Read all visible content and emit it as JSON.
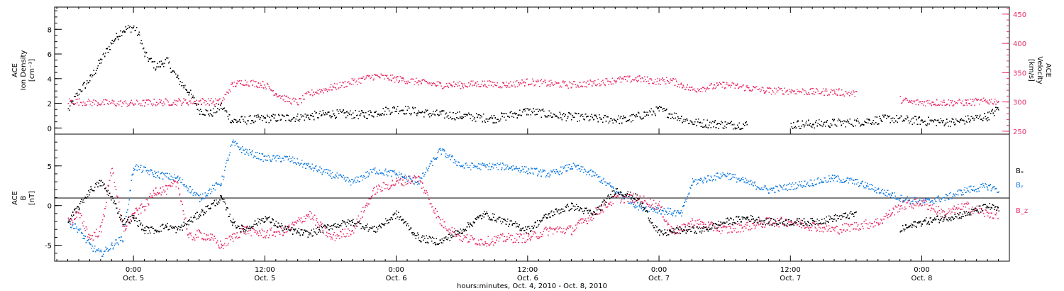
{
  "colors": {
    "density": "#000000",
    "velocity": "#e8336b",
    "bx": "#000000",
    "by": "#1a7fe0",
    "bz": "#e8336b"
  },
  "chart_data": [
    {
      "type": "scatter",
      "panel": "top",
      "ylabel": [
        "ACE",
        "Ion Density",
        "[cm⁻³]"
      ],
      "ylabel_right": [
        "ACE",
        "Velocity",
        "[km/s]"
      ],
      "ylim": [
        -0.5,
        9.8
      ],
      "ylim_right": [
        245,
        462
      ],
      "yticks": [
        "0",
        "2",
        "4",
        "6",
        "8"
      ],
      "yticks_right": [
        "250",
        "300",
        "350",
        "400",
        "450"
      ],
      "series": [
        {
          "name": "Ion Density",
          "axis": "left",
          "color": "#000000",
          "points": [
            [
              -6,
              1.5
            ],
            [
              -5,
              3
            ],
            [
              -4,
              4
            ],
            [
              -3,
              5.5
            ],
            [
              -2,
              7
            ],
            [
              -1,
              8
            ],
            [
              0,
              8.2
            ],
            [
              0.5,
              7.5
            ],
            [
              1,
              6
            ],
            [
              2,
              5
            ],
            [
              3,
              5.5
            ],
            [
              4,
              4
            ],
            [
              5,
              3
            ],
            [
              6,
              1.5
            ],
            [
              7,
              1.2
            ],
            [
              8,
              1.8
            ],
            [
              9,
              0.6
            ],
            [
              12,
              0.8
            ],
            [
              15,
              0.9
            ],
            [
              18,
              1.2
            ],
            [
              21,
              1.1
            ],
            [
              24,
              1.6
            ],
            [
              27,
              1.2
            ],
            [
              30,
              1.0
            ],
            [
              33,
              0.8
            ],
            [
              36,
              1.4
            ],
            [
              39,
              1.0
            ],
            [
              42,
              0.8
            ],
            [
              45,
              0.7
            ],
            [
              48,
              1.5
            ],
            [
              51,
              0.5
            ],
            [
              54,
              0.3
            ],
            [
              56,
              0.3
            ],
            [
              60,
              0.3
            ],
            [
              63,
              0.4
            ],
            [
              66,
              0.5
            ],
            [
              69,
              0.8
            ],
            [
              72,
              0.6
            ],
            [
              75,
              0.5
            ],
            [
              76,
              0.7
            ],
            [
              78,
              1.0
            ],
            [
              79,
              1.6
            ]
          ]
        },
        {
          "name": "Velocity",
          "axis": "right",
          "color": "#e8336b",
          "points": [
            [
              -6,
              302
            ],
            [
              -4,
              300
            ],
            [
              -2,
              299
            ],
            [
              0,
              298
            ],
            [
              2,
              300
            ],
            [
              4,
              301
            ],
            [
              6,
              302
            ],
            [
              8,
              301
            ],
            [
              9,
              330
            ],
            [
              10,
              335
            ],
            [
              12,
              330
            ],
            [
              13,
              315
            ],
            [
              14,
              305
            ],
            [
              15,
              300
            ],
            [
              16,
              315
            ],
            [
              18,
              325
            ],
            [
              20,
              335
            ],
            [
              22,
              345
            ],
            [
              24,
              340
            ],
            [
              26,
              335
            ],
            [
              28,
              330
            ],
            [
              30,
              330
            ],
            [
              32,
              332
            ],
            [
              34,
              330
            ],
            [
              36,
              335
            ],
            [
              38,
              332
            ],
            [
              40,
              330
            ],
            [
              42,
              333
            ],
            [
              44,
              338
            ],
            [
              46,
              340
            ],
            [
              48,
              336
            ],
            [
              49,
              338
            ],
            [
              50,
              330
            ],
            [
              51,
              322
            ],
            [
              54,
              330
            ],
            [
              56,
              325
            ],
            [
              58,
              320
            ],
            [
              60,
              320
            ],
            [
              62,
              318
            ],
            [
              64,
              318
            ],
            [
              66,
              315
            ],
            [
              70,
              305
            ],
            [
              71,
              300
            ],
            [
              73,
              300
            ],
            [
              74,
              300
            ],
            [
              76,
              300
            ],
            [
              78,
              302
            ],
            [
              79,
              303
            ]
          ]
        }
      ]
    },
    {
      "type": "scatter",
      "panel": "bottom",
      "ylabel": [
        "ACE",
        "B",
        "[nT]"
      ],
      "ylim": [
        -7,
        9
      ],
      "yticks": [
        "-5",
        "0",
        "5"
      ],
      "legend": [
        "Bₓ",
        "Bᵧ",
        "B_z"
      ],
      "legend_position": "right",
      "series": [
        {
          "name": "Bₓ",
          "color": "#000000",
          "points": [
            [
              -6,
              -2
            ],
            [
              -5,
              0
            ],
            [
              -4,
              2
            ],
            [
              -3,
              3
            ],
            [
              -2,
              1
            ],
            [
              -1,
              -2
            ],
            [
              0,
              -1.5
            ],
            [
              1,
              -3
            ],
            [
              2,
              -3
            ],
            [
              3,
              -2.5
            ],
            [
              4,
              -3
            ],
            [
              5,
              -2
            ],
            [
              6,
              -1
            ],
            [
              7,
              0
            ],
            [
              8,
              1
            ],
            [
              9,
              -2
            ],
            [
              10,
              -3
            ],
            [
              12,
              -1.5
            ],
            [
              14,
              -3
            ],
            [
              16,
              -3.5
            ],
            [
              18,
              -2.5
            ],
            [
              20,
              -2
            ],
            [
              22,
              -3
            ],
            [
              24,
              -1
            ],
            [
              26,
              -4
            ],
            [
              28,
              -4.5
            ],
            [
              30,
              -3
            ],
            [
              32,
              -1
            ],
            [
              34,
              -2
            ],
            [
              36,
              -3
            ],
            [
              38,
              -1
            ],
            [
              40,
              0
            ],
            [
              42,
              -1
            ],
            [
              44,
              2
            ],
            [
              46,
              1
            ],
            [
              48,
              -3.5
            ],
            [
              50,
              -3
            ],
            [
              52,
              -3
            ],
            [
              54,
              -2
            ],
            [
              56,
              -1.5
            ],
            [
              58,
              -2
            ],
            [
              60,
              -2
            ],
            [
              62,
              -2
            ],
            [
              64,
              -1.5
            ],
            [
              66,
              -1
            ],
            [
              70,
              -3
            ],
            [
              72,
              -2
            ],
            [
              74,
              -1.5
            ],
            [
              76,
              -1
            ],
            [
              78,
              0
            ],
            [
              79,
              -0.5
            ]
          ]
        },
        {
          "name": "Bᵧ",
          "color": "#1a7fe0",
          "points": [
            [
              -6,
              -2
            ],
            [
              -5,
              -3
            ],
            [
              -4,
              -5
            ],
            [
              -3,
              -6
            ],
            [
              -2,
              -5
            ],
            [
              -1,
              -4
            ],
            [
              0,
              5
            ],
            [
              2,
              4
            ],
            [
              4,
              3.5
            ],
            [
              6,
              1
            ],
            [
              8,
              3
            ],
            [
              9,
              8
            ],
            [
              10,
              7
            ],
            [
              12,
              6
            ],
            [
              14,
              6
            ],
            [
              16,
              5
            ],
            [
              18,
              4
            ],
            [
              20,
              3
            ],
            [
              22,
              4.5
            ],
            [
              24,
              4
            ],
            [
              26,
              3
            ],
            [
              28,
              7
            ],
            [
              30,
              5
            ],
            [
              32,
              5
            ],
            [
              34,
              5
            ],
            [
              36,
              4.5
            ],
            [
              38,
              4
            ],
            [
              40,
              5
            ],
            [
              42,
              4
            ],
            [
              44,
              2
            ],
            [
              46,
              0
            ],
            [
              48,
              -0.5
            ],
            [
              50,
              -1
            ],
            [
              51,
              3
            ],
            [
              54,
              4
            ],
            [
              56,
              3
            ],
            [
              58,
              2
            ],
            [
              60,
              2.5
            ],
            [
              62,
              3
            ],
            [
              64,
              3.5
            ],
            [
              66,
              3
            ],
            [
              68,
              2
            ],
            [
              70,
              1
            ],
            [
              72,
              0.5
            ],
            [
              74,
              1
            ],
            [
              76,
              2
            ],
            [
              78,
              2.5
            ],
            [
              79,
              2
            ]
          ]
        },
        {
          "name": "B_z",
          "color": "#e8336b",
          "points": [
            [
              -6,
              -2
            ],
            [
              -5,
              -1
            ],
            [
              -4,
              -4
            ],
            [
              -3,
              -3
            ],
            [
              -2,
              5
            ],
            [
              -1,
              -3
            ],
            [
              0,
              -1
            ],
            [
              1,
              0
            ],
            [
              2,
              2
            ],
            [
              3,
              2
            ],
            [
              4,
              3
            ],
            [
              5,
              -4
            ],
            [
              6,
              -3.5
            ],
            [
              7,
              -4
            ],
            [
              8,
              -5
            ],
            [
              9,
              -4
            ],
            [
              10,
              -3
            ],
            [
              12,
              -3.5
            ],
            [
              14,
              -3
            ],
            [
              16,
              -1
            ],
            [
              18,
              -4
            ],
            [
              20,
              -3
            ],
            [
              22,
              2
            ],
            [
              24,
              3
            ],
            [
              26,
              3.5
            ],
            [
              28,
              -2
            ],
            [
              30,
              -4
            ],
            [
              32,
              -4.5
            ],
            [
              34,
              -4
            ],
            [
              36,
              -4
            ],
            [
              38,
              -3
            ],
            [
              40,
              -3
            ],
            [
              42,
              -1
            ],
            [
              44,
              1
            ],
            [
              46,
              1
            ],
            [
              48,
              0
            ],
            [
              49,
              -3
            ],
            [
              50,
              -3
            ],
            [
              51,
              -2
            ],
            [
              54,
              -3
            ],
            [
              56,
              -2.5
            ],
            [
              58,
              -2
            ],
            [
              60,
              -2
            ],
            [
              62,
              -2.5
            ],
            [
              64,
              -3
            ],
            [
              66,
              -2.5
            ],
            [
              68,
              -2
            ],
            [
              70,
              0
            ],
            [
              72,
              0.5
            ],
            [
              74,
              -1
            ],
            [
              76,
              0
            ],
            [
              78,
              -1
            ],
            [
              79,
              -1
            ]
          ]
        }
      ]
    }
  ],
  "xaxis": {
    "label": "hours:minutes, Oct.  4, 2010 - Oct.  8, 2010",
    "unit": "hours from Oct. 5 00:00",
    "xlim": [
      -7.2,
      80.0
    ],
    "ticks": [
      {
        "hours": 0,
        "time": "0:00",
        "date": "Oct. 5"
      },
      {
        "hours": 12,
        "time": "12:00",
        "date": "Oct. 5"
      },
      {
        "hours": 24,
        "time": "0:00",
        "date": "Oct. 6"
      },
      {
        "hours": 36,
        "time": "12:00",
        "date": "Oct. 6"
      },
      {
        "hours": 48,
        "time": "0:00",
        "date": "Oct. 7"
      },
      {
        "hours": 60,
        "time": "12:00",
        "date": "Oct. 7"
      },
      {
        "hours": 72,
        "time": "0:00",
        "date": "Oct. 8"
      }
    ]
  }
}
